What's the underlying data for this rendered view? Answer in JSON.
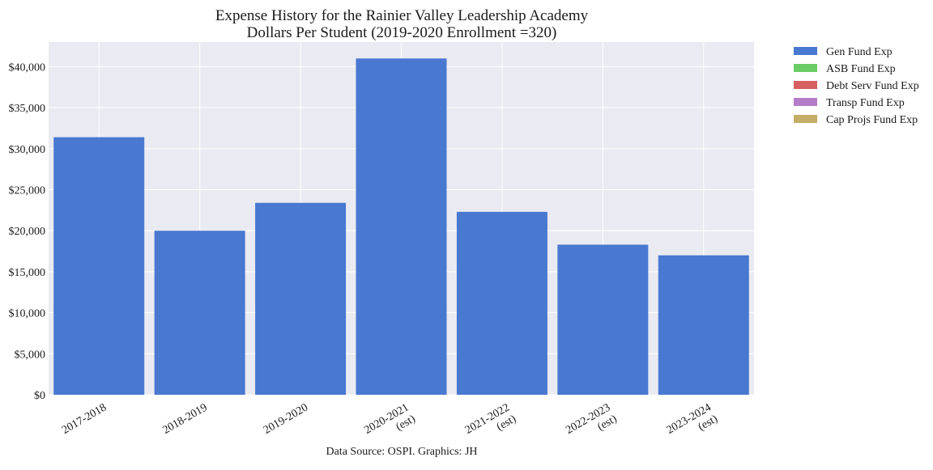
{
  "chart_data": {
    "type": "bar",
    "stacked": true,
    "title": "Expense History for the Rainier Valley Leadership Academy",
    "subtitle": "Dollars Per Student (2019-2020 Enrollment =320)",
    "source": "Data Source: OSPI. Graphics: JH",
    "xlabel": "",
    "ylabel": "",
    "ylim": [
      0,
      43000
    ],
    "yticks": [
      0,
      5000,
      10000,
      15000,
      20000,
      25000,
      30000,
      35000,
      40000
    ],
    "ytick_labels": [
      "$0",
      "$5,000",
      "$10,000",
      "$15,000",
      "$20,000",
      "$25,000",
      "$30,000",
      "$35,000",
      "$40,000"
    ],
    "categories": [
      [
        "2017-2018"
      ],
      [
        "2018-2019"
      ],
      [
        "2019-2020"
      ],
      [
        "2020-2021",
        "(est)"
      ],
      [
        "2021-2022",
        "(est)"
      ],
      [
        "2022-2023",
        "(est)"
      ],
      [
        "2023-2024",
        "(est)"
      ]
    ],
    "series": [
      {
        "name": "Gen Fund Exp",
        "color": "#4878d0",
        "values": [
          31400,
          20000,
          23400,
          41000,
          22300,
          18300,
          17000
        ]
      },
      {
        "name": "ASB Fund Exp",
        "color": "#6acc64",
        "values": [
          0,
          0,
          0,
          0,
          0,
          0,
          0
        ]
      },
      {
        "name": "Debt Serv Fund Exp",
        "color": "#d65f5f",
        "values": [
          0,
          0,
          0,
          0,
          0,
          0,
          0
        ]
      },
      {
        "name": "Transp Fund Exp",
        "color": "#b47cc7",
        "values": [
          0,
          0,
          0,
          0,
          0,
          0,
          0
        ]
      },
      {
        "name": "Cap Projs Fund Exp",
        "color": "#c4ad66",
        "values": [
          0,
          0,
          0,
          0,
          0,
          0,
          0
        ]
      }
    ],
    "grid": true,
    "legend_position": "outside-right-top"
  }
}
